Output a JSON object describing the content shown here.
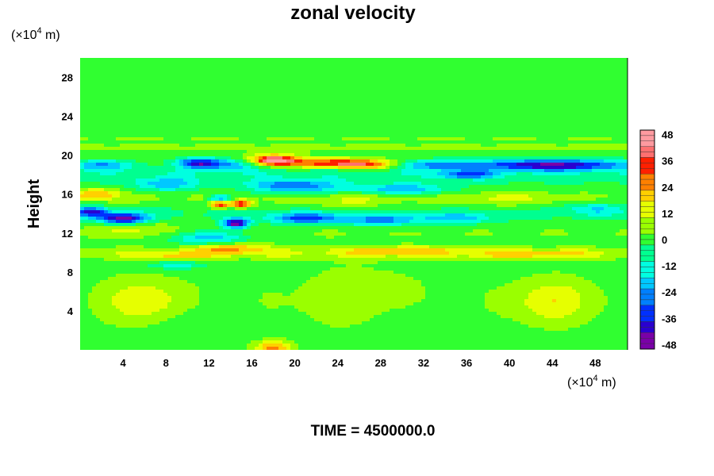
{
  "chart_data": {
    "type": "heatmap",
    "title": "zonal velocity",
    "ylabel": "Height",
    "y_unit": "(×10",
    "x_unit": "(×10",
    "unit_exponent": "4",
    "unit_suffix": " m)",
    "xlim": [
      0,
      51
    ],
    "ylim": [
      0,
      30
    ],
    "xticks": [
      4,
      8,
      12,
      16,
      20,
      24,
      28,
      32,
      36,
      40,
      44,
      48
    ],
    "yticks": [
      4,
      8,
      12,
      16,
      20,
      24,
      28
    ],
    "colorbar": {
      "min": -50,
      "max": 50,
      "ticks": [
        48,
        36,
        24,
        12,
        0,
        -12,
        -24,
        -36,
        -48
      ],
      "colors": [
        "#7a00a8",
        "#2a00d0",
        "#0030ff",
        "#0080ff",
        "#00c8ff",
        "#00ffe0",
        "#00ff90",
        "#30ff30",
        "#9aff00",
        "#e6ff00",
        "#ffd000",
        "#ff8000",
        "#ff2000",
        "#ff7070",
        "#ff9aa0"
      ]
    },
    "background_value": 0,
    "features": [
      {
        "x": 18,
        "y": 19.5,
        "sx": 1.6,
        "sy": 0.4,
        "value": 44
      },
      {
        "x": 23,
        "y": 19.2,
        "sx": 3.0,
        "sy": 0.35,
        "value": 32
      },
      {
        "x": 27,
        "y": 19.0,
        "sx": 2.2,
        "sy": 0.35,
        "value": 26
      },
      {
        "x": 13,
        "y": 15.0,
        "sx": 0.6,
        "sy": 0.3,
        "value": 40
      },
      {
        "x": 15,
        "y": 15.0,
        "sx": 0.7,
        "sy": 0.3,
        "value": 36
      },
      {
        "x": 1.5,
        "y": 16.0,
        "sx": 1.5,
        "sy": 0.4,
        "value": 22
      },
      {
        "x": 14,
        "y": 10.4,
        "sx": 2.5,
        "sy": 0.4,
        "value": 22
      },
      {
        "x": 9,
        "y": 9.6,
        "sx": 2.0,
        "sy": 0.3,
        "value": 14
      },
      {
        "x": 30,
        "y": 10.2,
        "sx": 4.0,
        "sy": 0.35,
        "value": 14
      },
      {
        "x": 42,
        "y": 9.8,
        "sx": 4.0,
        "sy": 0.35,
        "value": 12
      },
      {
        "x": 5,
        "y": 12.5,
        "sx": 2.5,
        "sy": 0.6,
        "value": 10
      },
      {
        "x": 6,
        "y": 5.0,
        "sx": 2.5,
        "sy": 1.6,
        "value": 14
      },
      {
        "x": 44,
        "y": 5.0,
        "sx": 2.5,
        "sy": 1.6,
        "value": 14
      },
      {
        "x": 26,
        "y": 5.5,
        "sx": 4.0,
        "sy": 2.5,
        "value": 6
      },
      {
        "x": 18,
        "y": 0.2,
        "sx": 1.2,
        "sy": 0.5,
        "value": 26
      },
      {
        "x": 31,
        "y": 2.5,
        "sx": 3.0,
        "sy": 2.0,
        "value": -4
      },
      {
        "x": 10,
        "y": 2.0,
        "sx": 2.5,
        "sy": 2.0,
        "value": -4
      },
      {
        "x": 2,
        "y": 19.0,
        "sx": 2.0,
        "sy": 0.35,
        "value": -24
      },
      {
        "x": 11,
        "y": 19.2,
        "sx": 1.4,
        "sy": 0.35,
        "value": -38
      },
      {
        "x": 14,
        "y": 19.0,
        "sx": 2.0,
        "sy": 0.4,
        "value": -20
      },
      {
        "x": 33,
        "y": 19.0,
        "sx": 3.0,
        "sy": 0.35,
        "value": -24
      },
      {
        "x": 44,
        "y": 19.0,
        "sx": 5.0,
        "sy": 0.4,
        "value": -44
      },
      {
        "x": 36,
        "y": 18.0,
        "sx": 2.0,
        "sy": 0.3,
        "value": -26
      },
      {
        "x": 8,
        "y": 17.0,
        "sx": 2.0,
        "sy": 0.5,
        "value": -20
      },
      {
        "x": 20,
        "y": 16.8,
        "sx": 3.0,
        "sy": 0.5,
        "value": -28
      },
      {
        "x": 30,
        "y": 16.5,
        "sx": 3.0,
        "sy": 0.4,
        "value": -22
      },
      {
        "x": 4,
        "y": 13.5,
        "sx": 1.6,
        "sy": 0.4,
        "value": -48
      },
      {
        "x": 1,
        "y": 14.2,
        "sx": 1.0,
        "sy": 0.35,
        "value": -36
      },
      {
        "x": 13,
        "y": 15.5,
        "sx": 0.7,
        "sy": 0.3,
        "value": -34
      },
      {
        "x": 14.5,
        "y": 13.0,
        "sx": 0.8,
        "sy": 0.35,
        "value": -48
      },
      {
        "x": 21,
        "y": 13.5,
        "sx": 2.5,
        "sy": 0.4,
        "value": -30
      },
      {
        "x": 28,
        "y": 13.3,
        "sx": 2.5,
        "sy": 0.4,
        "value": -24
      },
      {
        "x": 35,
        "y": 13.5,
        "sx": 2.5,
        "sy": 0.4,
        "value": -18
      },
      {
        "x": 12,
        "y": 11.5,
        "sx": 2.5,
        "sy": 0.5,
        "value": -22
      },
      {
        "x": 9,
        "y": 8.7,
        "sx": 1.8,
        "sy": 0.3,
        "value": -14
      },
      {
        "x": 48,
        "y": 14.5,
        "sx": 2.0,
        "sy": 0.5,
        "value": -14
      },
      {
        "x": 40,
        "y": 15.5,
        "sx": 3.0,
        "sy": 0.5,
        "value": 8
      },
      {
        "x": 25,
        "y": 15.2,
        "sx": 3.0,
        "sy": 0.5,
        "value": 8
      }
    ],
    "bands": [
      {
        "y": 20.8,
        "sy": 0.3,
        "value": 8
      },
      {
        "y": 21.7,
        "sy": 0.25,
        "value": 5
      },
      {
        "y": 18.3,
        "sy": 0.4,
        "value": -8
      },
      {
        "y": 9.9,
        "sy": 0.45,
        "value": 12
      },
      {
        "y": 17.5,
        "sy": 0.5,
        "value": -6
      },
      {
        "y": 14.0,
        "sy": 0.6,
        "value": -6
      },
      {
        "y": 12.0,
        "sy": 0.6,
        "value": 4
      },
      {
        "y": 15.6,
        "sy": 0.5,
        "value": 6
      },
      {
        "y": 5.0,
        "sy": 2.0,
        "value": 3
      }
    ]
  },
  "footer": {
    "time_label": "TIME = 4500000.0"
  }
}
